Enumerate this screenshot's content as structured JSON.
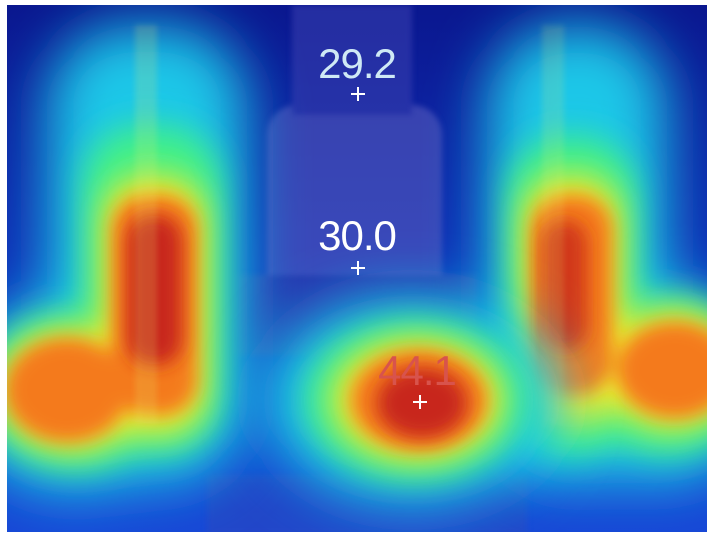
{
  "thermal_image": {
    "palette": [
      "#0a1a9c",
      "#1f5ef0",
      "#22c9e6",
      "#3ff08a",
      "#f2ea2a",
      "#f47a1a",
      "#c8281a"
    ],
    "spots": [
      {
        "value": "29.2",
        "color": "#cfe9f5"
      },
      {
        "value": "30.0",
        "color": "#ffffff"
      },
      {
        "value": "44.1",
        "color": "#d8534c"
      }
    ]
  }
}
